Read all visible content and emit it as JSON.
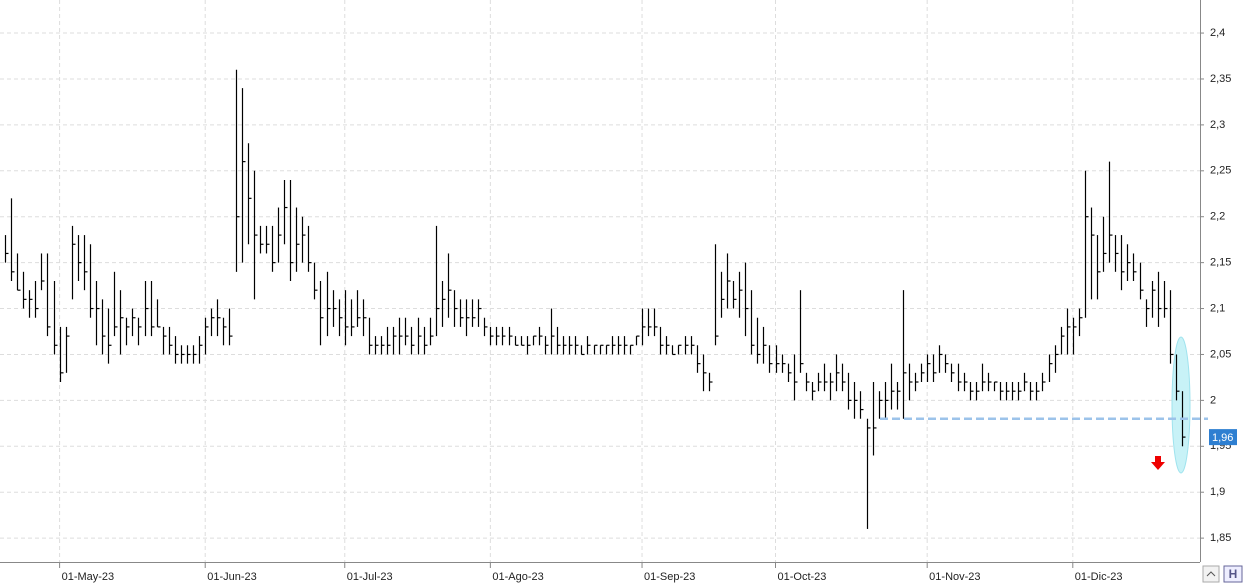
{
  "chart_data": {
    "type": "ohlc",
    "high": [
      2.18,
      2.22,
      2.16,
      2.14,
      2.12,
      2.13,
      2.16,
      2.16,
      2.13,
      2.08,
      2.08,
      2.19,
      2.18,
      2.18,
      2.17,
      2.13,
      2.11,
      2.1,
      2.14,
      2.12,
      2.09,
      2.1,
      2.09,
      2.13,
      2.13,
      2.11,
      2.08,
      2.08,
      2.07,
      2.06,
      2.06,
      2.06,
      2.07,
      2.09,
      2.1,
      2.11,
      2.09,
      2.1,
      2.36,
      2.34,
      2.28,
      2.25,
      2.19,
      2.19,
      2.19,
      2.21,
      2.24,
      2.24,
      2.21,
      2.2,
      2.19,
      2.15,
      2.13,
      2.14,
      2.12,
      2.11,
      2.12,
      2.11,
      2.12,
      2.11,
      2.09,
      2.07,
      2.07,
      2.08,
      2.08,
      2.09,
      2.09,
      2.08,
      2.09,
      2.08,
      2.09,
      2.19,
      2.13,
      2.16,
      2.12,
      2.11,
      2.11,
      2.11,
      2.11,
      2.09,
      2.08,
      2.08,
      2.08,
      2.08,
      2.07,
      2.07,
      2.07,
      2.07,
      2.08,
      2.07,
      2.1,
      2.08,
      2.07,
      2.07,
      2.07,
      2.06,
      2.07,
      2.06,
      2.06,
      2.06,
      2.07,
      2.07,
      2.07,
      2.06,
      2.07,
      2.1,
      2.1,
      2.1,
      2.08,
      2.07,
      2.06,
      2.06,
      2.07,
      2.07,
      2.06,
      2.05,
      2.03,
      2.17,
      2.14,
      2.16,
      2.13,
      2.14,
      2.15,
      2.12,
      2.09,
      2.08,
      2.06,
      2.06,
      2.05,
      2.04,
      2.05,
      2.12,
      2.03,
      2.02,
      2.03,
      2.04,
      2.03,
      2.05,
      2.04,
      2.03,
      2.02,
      2.01,
      1.98,
      2.02,
      2.01,
      2.02,
      2.04,
      2.02,
      2.12,
      2.04,
      2.03,
      2.04,
      2.05,
      2.05,
      2.06,
      2.05,
      2.04,
      2.04,
      2.03,
      2.02,
      2.02,
      2.04,
      2.03,
      2.02,
      2.02,
      2.02,
      2.02,
      2.02,
      2.03,
      2.02,
      2.02,
      2.03,
      2.05,
      2.06,
      2.08,
      2.1,
      2.09,
      2.1,
      2.25,
      2.21,
      2.18,
      2.2,
      2.26,
      2.18,
      2.18,
      2.17,
      2.16,
      2.15,
      2.11,
      2.13,
      2.14,
      2.13,
      2.12,
      2.05,
      2.01
    ],
    "low": [
      2.15,
      2.13,
      2.12,
      2.1,
      2.09,
      2.09,
      2.12,
      2.07,
      2.05,
      2.02,
      2.03,
      2.11,
      2.13,
      2.12,
      2.09,
      2.06,
      2.05,
      2.04,
      2.07,
      2.05,
      2.06,
      2.07,
      2.06,
      2.07,
      2.07,
      2.08,
      2.05,
      2.05,
      2.04,
      2.04,
      2.04,
      2.04,
      2.04,
      2.05,
      2.07,
      2.07,
      2.06,
      2.06,
      2.14,
      2.15,
      2.17,
      2.11,
      2.16,
      2.16,
      2.14,
      2.15,
      2.17,
      2.13,
      2.14,
      2.15,
      2.14,
      2.11,
      2.06,
      2.07,
      2.08,
      2.07,
      2.06,
      2.07,
      2.08,
      2.07,
      2.05,
      2.05,
      2.05,
      2.05,
      2.05,
      2.05,
      2.06,
      2.05,
      2.05,
      2.05,
      2.06,
      2.07,
      2.08,
      2.09,
      2.08,
      2.08,
      2.07,
      2.08,
      2.08,
      2.07,
      2.06,
      2.06,
      2.06,
      2.06,
      2.06,
      2.06,
      2.05,
      2.06,
      2.06,
      2.05,
      2.05,
      2.05,
      2.05,
      2.05,
      2.05,
      2.05,
      2.05,
      2.05,
      2.05,
      2.05,
      2.05,
      2.05,
      2.05,
      2.05,
      2.06,
      2.06,
      2.07,
      2.07,
      2.05,
      2.05,
      2.05,
      2.05,
      2.05,
      2.05,
      2.03,
      2.01,
      2.01,
      2.06,
      2.09,
      2.1,
      2.1,
      2.09,
      2.07,
      2.05,
      2.04,
      2.04,
      2.03,
      2.03,
      2.03,
      2.02,
      2.0,
      2.03,
      2.01,
      2.0,
      2.01,
      2.01,
      2.0,
      2.01,
      2.01,
      1.99,
      1.98,
      1.98,
      1.86,
      1.94,
      1.98,
      1.98,
      1.99,
      1.99,
      1.98,
      2.0,
      2.01,
      2.02,
      2.02,
      2.02,
      2.03,
      2.03,
      2.02,
      2.01,
      2.01,
      2.0,
      2.0,
      2.01,
      2.01,
      2.01,
      2.0,
      2.0,
      2.0,
      2.0,
      2.01,
      2.0,
      2.0,
      2.01,
      2.02,
      2.03,
      2.05,
      2.05,
      2.05,
      2.07,
      2.09,
      2.11,
      2.11,
      2.14,
      2.15,
      2.14,
      2.12,
      2.13,
      2.13,
      2.11,
      2.08,
      2.09,
      2.08,
      2.09,
      2.04,
      2.0,
      1.95
    ],
    "close": [
      2.16,
      2.14,
      2.12,
      2.11,
      2.11,
      2.1,
      2.13,
      2.08,
      2.06,
      2.03,
      2.07,
      2.17,
      2.15,
      2.14,
      2.1,
      2.1,
      2.07,
      2.06,
      2.08,
      2.09,
      2.08,
      2.09,
      2.08,
      2.1,
      2.08,
      2.08,
      2.07,
      2.06,
      2.05,
      2.05,
      2.05,
      2.05,
      2.06,
      2.08,
      2.09,
      2.09,
      2.08,
      2.07,
      2.2,
      2.26,
      2.22,
      2.18,
      2.17,
      2.17,
      2.15,
      2.18,
      2.21,
      2.15,
      2.17,
      2.18,
      2.15,
      2.12,
      2.09,
      2.1,
      2.1,
      2.09,
      2.08,
      2.08,
      2.09,
      2.09,
      2.06,
      2.06,
      2.06,
      2.06,
      2.07,
      2.07,
      2.07,
      2.06,
      2.07,
      2.06,
      2.07,
      2.1,
      2.11,
      2.12,
      2.1,
      2.09,
      2.09,
      2.09,
      2.1,
      2.08,
      2.07,
      2.07,
      2.07,
      2.07,
      2.06,
      2.06,
      2.06,
      2.07,
      2.07,
      2.06,
      2.07,
      2.06,
      2.06,
      2.06,
      2.06,
      2.05,
      2.06,
      2.06,
      2.06,
      2.06,
      2.06,
      2.06,
      2.06,
      2.06,
      2.07,
      2.08,
      2.08,
      2.08,
      2.06,
      2.06,
      2.05,
      2.06,
      2.06,
      2.06,
      2.04,
      2.03,
      2.02,
      2.07,
      2.11,
      2.13,
      2.11,
      2.12,
      2.1,
      2.06,
      2.05,
      2.06,
      2.04,
      2.04,
      2.04,
      2.03,
      2.02,
      2.04,
      2.02,
      2.01,
      2.02,
      2.02,
      2.02,
      2.03,
      2.02,
      2.0,
      2.0,
      1.99,
      1.97,
      1.97,
      2.0,
      2.0,
      2.01,
      2.01,
      2.03,
      2.02,
      2.02,
      2.03,
      2.04,
      2.03,
      2.05,
      2.04,
      2.03,
      2.02,
      2.02,
      2.01,
      2.01,
      2.02,
      2.02,
      2.02,
      2.01,
      2.01,
      2.01,
      2.01,
      2.02,
      2.01,
      2.01,
      2.02,
      2.04,
      2.05,
      2.07,
      2.08,
      2.08,
      2.09,
      2.2,
      2.18,
      2.14,
      2.16,
      2.18,
      2.16,
      2.14,
      2.15,
      2.14,
      2.12,
      2.1,
      2.12,
      2.1,
      2.1,
      2.05,
      2.01,
      1.96
    ],
    "color": "#000000",
    "ylim": [
      1.824,
      2.436
    ],
    "yticks": [
      {
        "value": 1.85,
        "label": "1,85"
      },
      {
        "value": 1.9,
        "label": "1,9"
      },
      {
        "value": 1.95,
        "label": "1,95"
      },
      2,
      {
        "value": 2.05,
        "label": "2,05"
      },
      {
        "value": 2.1,
        "label": "2,1"
      },
      {
        "value": 2.15,
        "label": "2,15"
      },
      {
        "value": 2.2,
        "label": "2,2"
      },
      {
        "value": 2.25,
        "label": "2,25"
      },
      {
        "value": 2.3,
        "label": "2,3"
      },
      {
        "value": 2.35,
        "label": "2,35"
      },
      {
        "value": 2.4,
        "label": "2,4"
      }
    ],
    "xticks": [
      {
        "value": 9,
        "label": "01-May-23"
      },
      {
        "value": 33,
        "label": "01-Jun-23"
      },
      {
        "value": 56,
        "label": "01-Jul-23"
      },
      {
        "value": 80,
        "label": "01-Ago-23"
      },
      {
        "value": 105,
        "label": "01-Sep-23"
      },
      {
        "value": 127,
        "label": "01-Oct-23"
      },
      {
        "value": 152,
        "label": "01-Nov-23"
      },
      {
        "value": 176,
        "label": "01-Dic-23"
      }
    ],
    "support_level": 1.98,
    "last_price": {
      "value": 1.96,
      "label": "1,96"
    },
    "grid": true
  }
}
